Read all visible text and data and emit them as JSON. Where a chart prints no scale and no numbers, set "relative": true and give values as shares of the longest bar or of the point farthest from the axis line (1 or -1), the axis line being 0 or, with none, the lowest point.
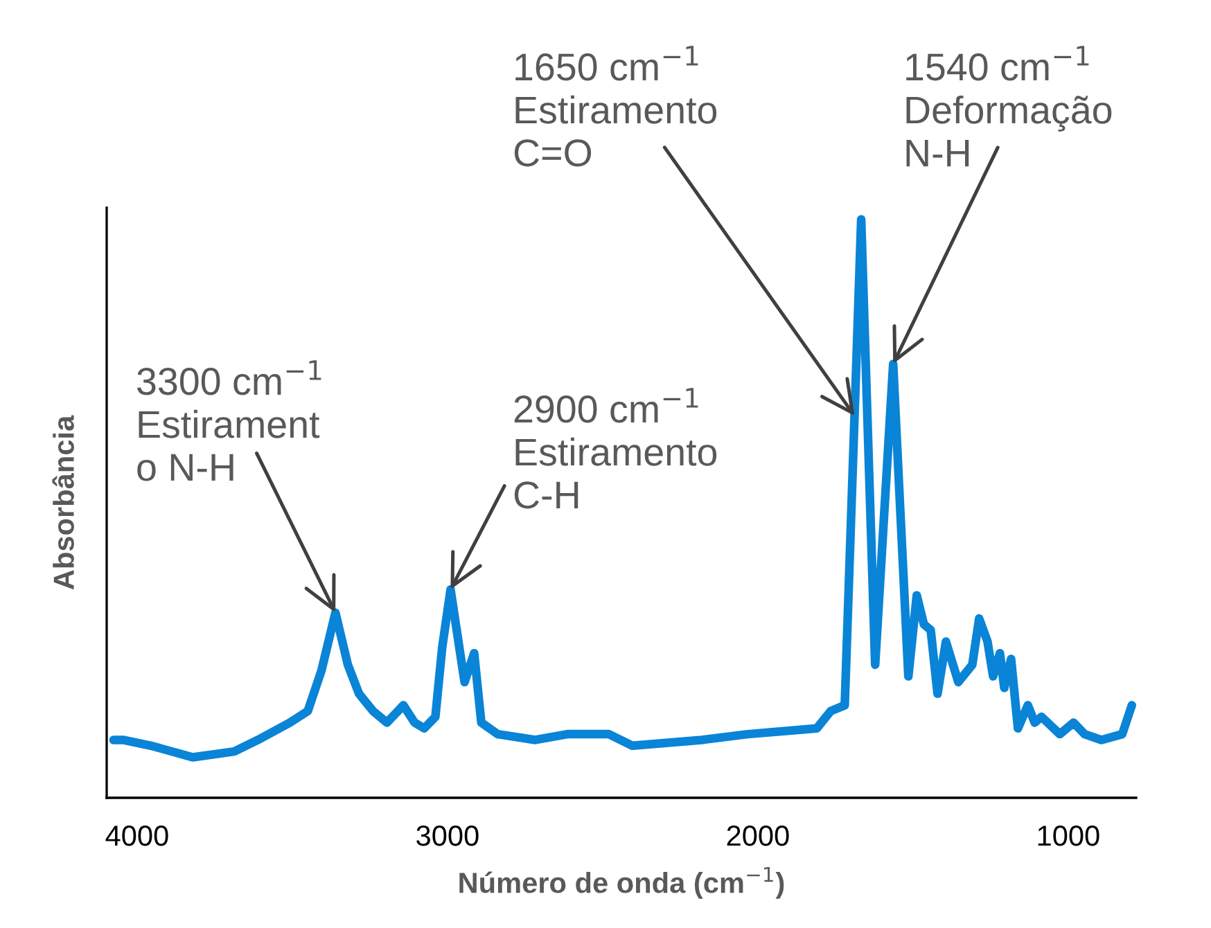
{
  "chart_data": {
    "type": "line",
    "relative": true,
    "xlabel": "Número de onda (cm$^{−1}$)",
    "ylabel": "Absorbância",
    "xlim": [
      4098,
      781
    ],
    "xticks": [
      4000,
      3000,
      2000,
      1000
    ],
    "grid": false,
    "legend": false,
    "marker": "none",
    "line_style": "solid",
    "series": [
      {
        "color": "#0a84d6",
        "x": [
          4076,
          4045,
          3955,
          3821,
          3687,
          3611,
          3508,
          3450,
          3406,
          3361,
          3321,
          3285,
          3240,
          3195,
          3142,
          3106,
          3075,
          3039,
          3017,
          2990,
          2945,
          2914,
          2891,
          2838,
          2717,
          2614,
          2480,
          2404,
          2181,
          2033,
          1810,
          1765,
          1720,
          1667,
          1622,
          1564,
          1515,
          1488,
          1465,
          1443,
          1421,
          1394,
          1354,
          1309,
          1287,
          1260,
          1242,
          1220,
          1206,
          1184,
          1162,
          1130,
          1108,
          1086,
          1027,
          983,
          947,
          893,
          826,
          795
        ],
        "values": [
          0.1,
          0.1,
          0.09,
          0.07,
          0.08,
          0.1,
          0.13,
          0.15,
          0.22,
          0.32,
          0.23,
          0.18,
          0.15,
          0.13,
          0.16,
          0.13,
          0.12,
          0.14,
          0.26,
          0.36,
          0.2,
          0.25,
          0.13,
          0.11,
          0.1,
          0.11,
          0.11,
          0.09,
          0.1,
          0.11,
          0.12,
          0.15,
          0.16,
          1.0,
          0.23,
          0.75,
          0.21,
          0.35,
          0.3,
          0.29,
          0.18,
          0.27,
          0.2,
          0.23,
          0.31,
          0.27,
          0.21,
          0.25,
          0.19,
          0.24,
          0.12,
          0.16,
          0.13,
          0.14,
          0.11,
          0.13,
          0.11,
          0.1,
          0.11,
          0.16
        ]
      }
    ],
    "annotations": [
      {
        "text": "3300 cm$^{−1}$\nEstirament\no N-H",
        "x": 3361,
        "y": 0.32
      },
      {
        "text": "2900 cm$^{−1}$\nEstiramento\nC-H",
        "x": 2990,
        "y": 0.36
      },
      {
        "text": "1650 cm$^{−1}$\nEstiramento\nC=O",
        "x": 1688,
        "y": 0.66
      },
      {
        "text": "1540 cm$^{−1}$\nDeformação\nN-H",
        "x": 1564,
        "y": 0.75
      }
    ]
  }
}
